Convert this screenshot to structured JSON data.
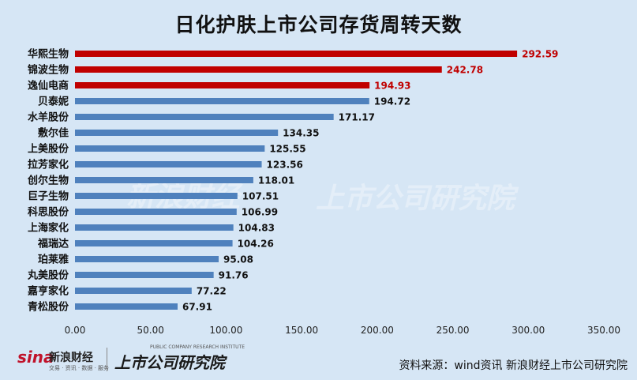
{
  "chart_data": {
    "type": "bar",
    "orientation": "horizontal",
    "title": "日化护肤上市公司存货周转天数",
    "categories": [
      "华熙生物",
      "锦波生物",
      "逸仙电商",
      "贝泰妮",
      "水羊股份",
      "敷尔佳",
      "上美股份",
      "拉芳家化",
      "创尔生物",
      "巨子生物",
      "科思股份",
      "上海家化",
      "福瑞达",
      "珀莱雅",
      "丸美股份",
      "嘉亨家化",
      "青松股份"
    ],
    "values": [
      292.59,
      242.78,
      194.93,
      194.72,
      171.17,
      134.35,
      125.55,
      123.56,
      118.01,
      107.51,
      106.99,
      104.83,
      104.26,
      95.08,
      91.76,
      77.22,
      67.91
    ],
    "value_labels": [
      "292.59",
      "242.78",
      "194.93",
      "194.72",
      "171.17",
      "134.35",
      "125.55",
      "123.56",
      "118.01",
      "107.51",
      "106.99",
      "104.83",
      "104.26",
      "95.08",
      "91.76",
      "77.22",
      "67.91"
    ],
    "highlighted_count": 3,
    "xlim": [
      0,
      350
    ],
    "xticks": [
      "0.00",
      "50.00",
      "100.00",
      "150.00",
      "200.00",
      "250.00",
      "300.00",
      "350.00"
    ],
    "grid": false,
    "legend": "none",
    "colors": {
      "highlight": "#c00000",
      "default": "#4f81bd",
      "highlight_label": "#c00000",
      "default_label": "#111111",
      "background": "#d6e6f5"
    }
  },
  "watermark": {
    "left": "新浪财经",
    "right": "上市公司研究院"
  },
  "footer": {
    "logo_sina": "sina",
    "logo_sina_cn": "新浪财经",
    "logo_sina_sub": "交易 · 资讯 · 数据 · 服务",
    "logo_research": "上市公司研究院",
    "logo_research_en": "PUBLIC COMPANY RESEARCH INSTITUTE",
    "source": "资料来源：wind资讯 新浪财经上市公司研究院"
  }
}
